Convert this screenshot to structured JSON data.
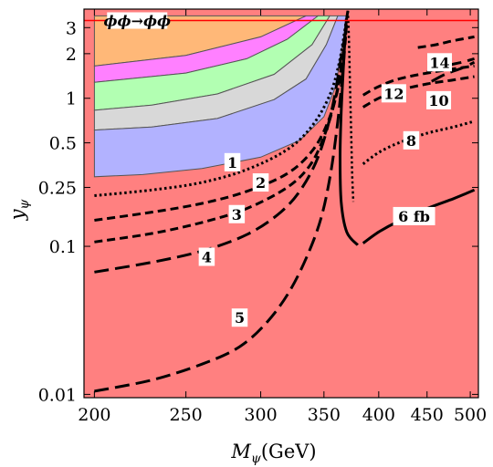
{
  "chart_data": {
    "type": "line",
    "title": "",
    "xlabel_main": "M",
    "xlabel_sub": "ψ",
    "xlabel_unit": "(GeV)",
    "ylabel_main": "y",
    "ylabel_sub": "ψ",
    "x_scale": "log",
    "y_scale": "log",
    "xlim": [
      195,
      510
    ],
    "ylim": [
      0.0095,
      4.0
    ],
    "x_ticks": [
      {
        "value": 200,
        "label": "200"
      },
      {
        "value": 250,
        "label": "250"
      },
      {
        "value": 300,
        "label": "300"
      },
      {
        "value": 350,
        "label": "350"
      },
      {
        "value": 400,
        "label": "400"
      },
      {
        "value": 450,
        "label": "450"
      },
      {
        "value": 500,
        "label": "500"
      }
    ],
    "y_ticks": [
      {
        "value": 0.01,
        "label": "0.01"
      },
      {
        "value": 0.1,
        "label": "0.1"
      },
      {
        "value": 0.25,
        "label": "0.25"
      },
      {
        "value": 0.5,
        "label": "0.5"
      },
      {
        "value": 1,
        "label": "1"
      },
      {
        "value": 2,
        "label": "2"
      },
      {
        "value": 3,
        "label": "3"
      }
    ],
    "background_region": {
      "color": "#ff8080"
    },
    "bands": [
      {
        "color": "#ffb878",
        "upper": [
          [
            200,
            3.6
          ],
          [
            250,
            3.6
          ],
          [
            300,
            3.6
          ],
          [
            335,
            3.6
          ]
        ],
        "lower": [
          [
            335,
            3.6
          ],
          [
            300,
            2.6
          ],
          [
            250,
            1.95
          ],
          [
            200,
            1.65
          ]
        ]
      },
      {
        "color": "#ff80ff",
        "upper": [
          [
            200,
            1.65
          ],
          [
            250,
            1.95
          ],
          [
            300,
            2.6
          ],
          [
            335,
            3.6
          ],
          [
            345,
            3.6
          ]
        ],
        "lower": [
          [
            345,
            3.6
          ],
          [
            320,
            2.5
          ],
          [
            290,
            1.85
          ],
          [
            250,
            1.48
          ],
          [
            200,
            1.28
          ]
        ]
      },
      {
        "color": "#b2ffb2",
        "upper": [
          [
            200,
            1.28
          ],
          [
            250,
            1.48
          ],
          [
            290,
            1.85
          ],
          [
            320,
            2.5
          ],
          [
            345,
            3.6
          ],
          [
            355,
            3.6
          ]
        ],
        "lower": [
          [
            355,
            3.6
          ],
          [
            340,
            2.3
          ],
          [
            310,
            1.45
          ],
          [
            270,
            1.07
          ],
          [
            230,
            0.9
          ],
          [
            200,
            0.83
          ]
        ]
      },
      {
        "color": "#d8d8d8",
        "upper": [
          [
            200,
            0.83
          ],
          [
            230,
            0.9
          ],
          [
            270,
            1.07
          ],
          [
            310,
            1.45
          ],
          [
            340,
            2.3
          ],
          [
            355,
            3.6
          ],
          [
            362,
            3.6
          ]
        ],
        "lower": [
          [
            362,
            3.6
          ],
          [
            352,
            2.3
          ],
          [
            335,
            1.35
          ],
          [
            310,
            0.98
          ],
          [
            270,
            0.73
          ],
          [
            230,
            0.64
          ],
          [
            200,
            0.61
          ]
        ]
      },
      {
        "color": "#b2b2ff",
        "upper": [
          [
            200,
            0.61
          ],
          [
            230,
            0.64
          ],
          [
            270,
            0.73
          ],
          [
            310,
            0.98
          ],
          [
            335,
            1.35
          ],
          [
            352,
            2.3
          ],
          [
            362,
            3.6
          ],
          [
            370,
            3.6
          ]
        ],
        "lower": [
          [
            370,
            3.6
          ],
          [
            366,
            2.2
          ],
          [
            360,
            1.2
          ],
          [
            350,
            0.75
          ],
          [
            330,
            0.52
          ],
          [
            300,
            0.4
          ],
          [
            260,
            0.335
          ],
          [
            225,
            0.305
          ],
          [
            200,
            0.295
          ]
        ]
      }
    ],
    "series": [
      {
        "label": "1",
        "style": "dotted",
        "width": 3,
        "points": [
          [
            200,
            0.22
          ],
          [
            230,
            0.24
          ],
          [
            260,
            0.27
          ],
          [
            290,
            0.33
          ],
          [
            320,
            0.45
          ],
          [
            340,
            0.65
          ],
          [
            355,
            1.05
          ],
          [
            363,
            1.7
          ],
          [
            368,
            2.8
          ],
          [
            370,
            3.6
          ]
        ]
      },
      {
        "label": "2",
        "style": "dashed",
        "width": 3,
        "points": [
          [
            200,
            0.15
          ],
          [
            230,
            0.17
          ],
          [
            260,
            0.195
          ],
          [
            290,
            0.235
          ],
          [
            320,
            0.31
          ],
          [
            340,
            0.44
          ],
          [
            353,
            0.68
          ],
          [
            362,
            1.15
          ],
          [
            367,
            2.0
          ],
          [
            370,
            3.4
          ]
        ]
      },
      {
        "label": "3",
        "style": "dashed",
        "width": 3,
        "points": [
          [
            200,
            0.107
          ],
          [
            230,
            0.122
          ],
          [
            260,
            0.145
          ],
          [
            290,
            0.18
          ],
          [
            320,
            0.25
          ],
          [
            338,
            0.35
          ],
          [
            350,
            0.55
          ],
          [
            360,
            1.0
          ],
          [
            367,
            2.0
          ],
          [
            370,
            3.2
          ]
        ]
      },
      {
        "label": "4",
        "style": "longdash",
        "width": 3,
        "points": [
          [
            200,
            0.067
          ],
          [
            230,
            0.078
          ],
          [
            260,
            0.093
          ],
          [
            290,
            0.12
          ],
          [
            315,
            0.17
          ],
          [
            332,
            0.25
          ],
          [
            346,
            0.42
          ],
          [
            357,
            0.85
          ],
          [
            365,
            1.9
          ],
          [
            370,
            3.1
          ]
        ]
      },
      {
        "label": "5",
        "style": "longdash",
        "width": 3,
        "points": [
          [
            200,
            0.0105
          ],
          [
            230,
            0.0125
          ],
          [
            260,
            0.016
          ],
          [
            285,
            0.021
          ],
          [
            305,
            0.031
          ],
          [
            322,
            0.05
          ],
          [
            337,
            0.09
          ],
          [
            348,
            0.16
          ],
          [
            356,
            0.32
          ],
          [
            362,
            0.7
          ],
          [
            366,
            1.4
          ],
          [
            369,
            2.6
          ]
        ]
      },
      {
        "label": "6 fb",
        "style": "solid",
        "width": 3,
        "points": [
          [
            380,
            0.102
          ],
          [
            370,
            0.125
          ],
          [
            365,
            0.2
          ],
          [
            364,
            0.4
          ],
          [
            365,
            0.8
          ],
          [
            367,
            1.6
          ],
          [
            369,
            3.0
          ],
          [
            371,
            3.9
          ]
        ]
      },
      {
        "label": "",
        "style": "dotted",
        "width": 2.5,
        "points": [
          [
            371,
            3.9
          ],
          [
            372,
            2.5
          ],
          [
            373,
            1.2
          ],
          [
            374,
            0.6
          ],
          [
            375,
            0.3
          ],
          [
            376,
            0.2
          ]
        ]
      },
      {
        "label": "",
        "style": "solid",
        "width": 3,
        "points": [
          [
            385,
            0.105
          ],
          [
            400,
            0.125
          ],
          [
            420,
            0.148
          ],
          [
            450,
            0.18
          ],
          [
            480,
            0.21
          ],
          [
            505,
            0.24
          ]
        ]
      },
      {
        "label": "",
        "style": "dotted",
        "width": 3,
        "points": [
          [
            385,
            0.36
          ],
          [
            400,
            0.43
          ],
          [
            420,
            0.5
          ],
          [
            450,
            0.58
          ],
          [
            480,
            0.64
          ],
          [
            505,
            0.7
          ]
        ]
      },
      {
        "label": "",
        "style": "dashed",
        "width": 3,
        "points": [
          [
            385,
            0.87
          ],
          [
            400,
            1.0
          ],
          [
            420,
            1.13
          ],
          [
            450,
            1.25
          ],
          [
            480,
            1.33
          ],
          [
            505,
            1.4
          ]
        ]
      },
      {
        "label": "",
        "style": "dashed",
        "width": 3,
        "points": [
          [
            385,
            1.05
          ],
          [
            400,
            1.2
          ],
          [
            420,
            1.35
          ],
          [
            450,
            1.48
          ],
          [
            480,
            1.58
          ],
          [
            505,
            1.65
          ]
        ]
      },
      {
        "label": "",
        "style": "longdash",
        "width": 3,
        "points": [
          [
            455,
            1.3
          ],
          [
            470,
            1.45
          ],
          [
            490,
            1.6
          ],
          [
            505,
            1.75
          ]
        ]
      },
      {
        "label": "",
        "style": "longdash",
        "width": 3,
        "points": [
          [
            450,
            1.5
          ],
          [
            470,
            1.65
          ],
          [
            490,
            1.75
          ],
          [
            505,
            1.85
          ]
        ]
      },
      {
        "label": "",
        "style": "dashed",
        "width": 3,
        "points": [
          [
            440,
            2.2
          ],
          [
            460,
            2.3
          ],
          [
            480,
            2.45
          ],
          [
            505,
            2.6
          ]
        ]
      }
    ],
    "contour_labels": [
      {
        "text": "1",
        "x": 280,
        "y": 0.37
      },
      {
        "text": "2",
        "x": 300,
        "y": 0.27
      },
      {
        "text": "3",
        "x": 283,
        "y": 0.165
      },
      {
        "text": "4",
        "x": 263,
        "y": 0.085
      },
      {
        "text": "5",
        "x": 285,
        "y": 0.033
      },
      {
        "text": "6 fb",
        "x": 436,
        "y": 0.16
      },
      {
        "text": "8",
        "x": 433,
        "y": 0.52
      },
      {
        "text": "10",
        "x": 463,
        "y": 0.97
      },
      {
        "text": "12",
        "x": 415,
        "y": 1.08
      },
      {
        "text": "14",
        "x": 464,
        "y": 1.75
      }
    ],
    "threshold_line": {
      "y": 3.35,
      "color": "#ff0000",
      "label": "ϕϕ→ϕϕ",
      "label_x": 222
    }
  }
}
